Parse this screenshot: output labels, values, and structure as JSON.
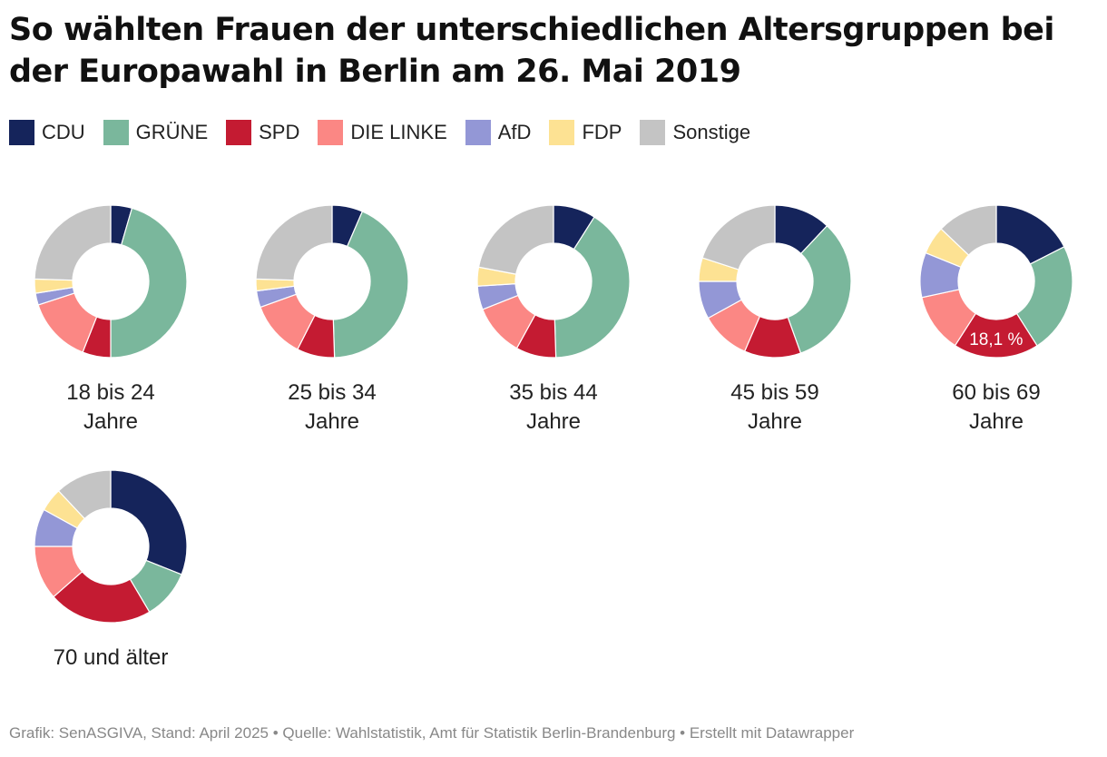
{
  "title": "So wählten Frauen der unterschiedlichen Altersgruppen bei der Europawahl in Berlin am 26. Mai 2019",
  "legend": [
    {
      "label": "CDU",
      "color": "#15245b"
    },
    {
      "label": "GRÜNE",
      "color": "#7ab79c"
    },
    {
      "label": "SPD",
      "color": "#c41b32"
    },
    {
      "label": "DIE LINKE",
      "color": "#fb8784"
    },
    {
      "label": "AfD",
      "color": "#9397d6"
    },
    {
      "label": "FDP",
      "color": "#fde293"
    },
    {
      "label": "Sonstige",
      "color": "#c4c4c4"
    }
  ],
  "chart_data": {
    "type": "donut",
    "unit": "%",
    "series": [
      "CDU",
      "GRÜNE",
      "SPD",
      "DIE LINKE",
      "AfD",
      "FDP",
      "Sonstige"
    ],
    "groups": [
      {
        "label_lines": [
          "18 bis 24",
          "Jahre"
        ],
        "values": [
          4.5,
          45.5,
          6.0,
          14.0,
          2.5,
          3.0,
          24.5
        ]
      },
      {
        "label_lines": [
          "25 bis 34",
          "Jahre"
        ],
        "values": [
          6.5,
          43.0,
          8.0,
          12.0,
          3.5,
          2.5,
          24.5
        ]
      },
      {
        "label_lines": [
          "35 bis 44",
          "Jahre"
        ],
        "values": [
          9.0,
          40.5,
          8.5,
          11.0,
          5.0,
          4.0,
          22.0
        ]
      },
      {
        "label_lines": [
          "45 bis 59",
          "Jahre"
        ],
        "values": [
          12.0,
          32.5,
          12.0,
          10.5,
          8.0,
          5.0,
          20.0
        ]
      },
      {
        "label_lines": [
          "60 bis 69",
          "Jahre"
        ],
        "values": [
          17.5,
          23.5,
          18.1,
          12.5,
          9.5,
          6.0,
          12.9
        ],
        "highlight": {
          "series": "SPD",
          "text": "18,1 %"
        }
      },
      {
        "label_lines": [
          "70 und älter"
        ],
        "values": [
          31.0,
          10.5,
          22.0,
          11.5,
          8.0,
          5.0,
          12.0
        ]
      }
    ]
  },
  "footer": "Grafik: SenASGIVA, Stand: April 2025 • Quelle: Wahlstatistik, Amt für Statistik Berlin-Brandenburg • Erstellt mit Datawrapper"
}
